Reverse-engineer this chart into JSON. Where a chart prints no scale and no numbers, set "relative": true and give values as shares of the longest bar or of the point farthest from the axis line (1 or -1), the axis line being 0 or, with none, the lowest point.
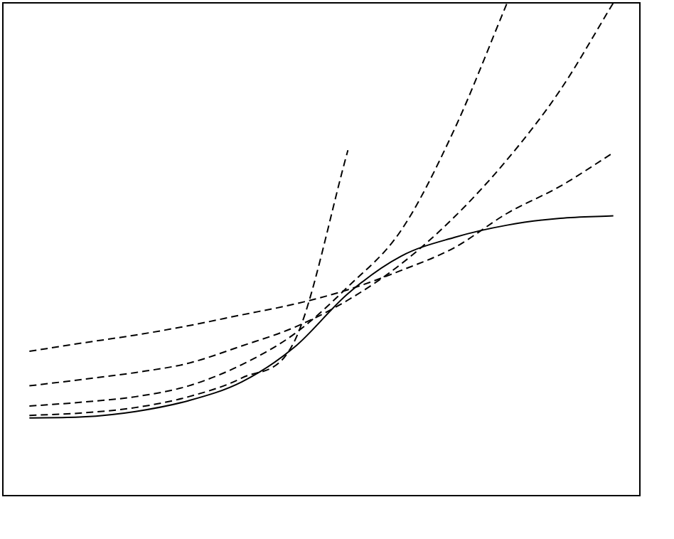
{
  "chart_data": {
    "type": "line",
    "relative": true,
    "categories": [
      null,
      null,
      null,
      null,
      null,
      null,
      null,
      null,
      null,
      null,
      null,
      null
    ],
    "legend": false,
    "grid": false,
    "marker": "none",
    "series": [
      {
        "color": "#000000",
        "line_style": "solid",
        "values": [
          0.158,
          0.16,
          0.171,
          0.193,
          0.231,
          0.302,
          0.41,
          0.486,
          0.524,
          0.549,
          0.563,
          0.568
        ]
      },
      {
        "color": "#000000",
        "line_style": "dashed",
        "values": [
          0.293,
          0.31,
          0.326,
          0.345,
          0.367,
          0.389,
          0.418,
          0.457,
          0.503,
          0.573,
          0.628,
          0.696
        ]
      },
      {
        "color": "#000000",
        "line_style": "dashed",
        "values": [
          0.223,
          0.236,
          0.25,
          0.269,
          0.304,
          0.342,
          0.397,
          0.47,
          0.565,
          0.682,
          0.823,
          1.0
        ]
      },
      {
        "color": "#000000",
        "line_style": "dashed",
        "values": [
          0.182,
          0.19,
          0.201,
          0.223,
          0.266,
          0.329,
          0.424,
          0.538,
          0.742,
          1.0,
          null,
          null
        ]
      },
      {
        "color": "#000000",
        "line_style": "dashed",
        "values": [
          0.163,
          0.168,
          0.179,
          0.201,
          0.239,
          0.315,
          0.701,
          null,
          null,
          null,
          null,
          null
        ]
      }
    ]
  }
}
